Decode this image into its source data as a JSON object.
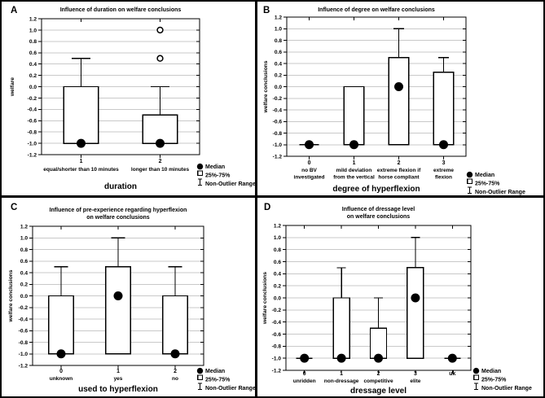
{
  "figure": {
    "background": "#ffffff",
    "border_color": "#000000",
    "gridline_color": "#c9c9c9",
    "box_fill": "#ffffff",
    "line_color": "#000000"
  },
  "legend": {
    "median": "Median",
    "box": "25%-75%",
    "whisker": "Non-Outlier Range"
  },
  "chart_data": [
    {
      "id": "A",
      "type": "box",
      "panel_label": "A",
      "title_lines": [
        "Influence of duration on welfare conclusions"
      ],
      "ylabel": "welfare",
      "xlabel": "duration",
      "ylim": [
        -1.2,
        1.2
      ],
      "ytick_step": 0.2,
      "grid": true,
      "legend_position": "bottom-right",
      "categories": [
        {
          "value": "1",
          "label_lines": [
            "equal/shorter than 10 minutes"
          ]
        },
        {
          "value": "2",
          "label_lines": [
            "longer than 10 minutes"
          ]
        }
      ],
      "boxes": [
        {
          "median": -1.0,
          "q1": -1.0,
          "q3": 0.0,
          "whisker_low": -1.0,
          "whisker_high": 0.5,
          "outliers": []
        },
        {
          "median": -1.0,
          "q1": -1.0,
          "q3": -0.5,
          "whisker_low": -1.0,
          "whisker_high": 0.0,
          "outliers": [
            0.5,
            1.0
          ]
        }
      ]
    },
    {
      "id": "B",
      "type": "box",
      "panel_label": "B",
      "title_lines": [
        "Influence of degree on welfare conclusions"
      ],
      "ylabel": "welfare conclusions",
      "xlabel": "degree of hyperflexion",
      "ylim": [
        -1.2,
        1.2
      ],
      "ytick_step": 0.2,
      "grid": true,
      "legend_position": "bottom-right",
      "categories": [
        {
          "value": "0",
          "label_lines": [
            "no BV",
            "investigated"
          ]
        },
        {
          "value": "1",
          "label_lines": [
            "mild deviation",
            "from the vertical"
          ]
        },
        {
          "value": "2",
          "label_lines": [
            "extreme flexion if",
            "horse compliant"
          ]
        },
        {
          "value": "3",
          "label_lines": [
            "extreme",
            "flexion"
          ]
        }
      ],
      "boxes": [
        {
          "median": -1.0,
          "q1": -1.0,
          "q3": -1.0,
          "whisker_low": -1.0,
          "whisker_high": -1.0,
          "outliers": []
        },
        {
          "median": -1.0,
          "q1": -1.0,
          "q3": 0.0,
          "whisker_low": -1.0,
          "whisker_high": 0.0,
          "outliers": []
        },
        {
          "median": 0.0,
          "q1": -1.0,
          "q3": 0.5,
          "whisker_low": -1.0,
          "whisker_high": 1.0,
          "outliers": []
        },
        {
          "median": -1.0,
          "q1": -1.0,
          "q3": 0.25,
          "whisker_low": -1.0,
          "whisker_high": 0.5,
          "outliers": []
        }
      ]
    },
    {
      "id": "C",
      "type": "box",
      "panel_label": "C",
      "title_lines": [
        "Influence of pre-experience regarding hyperflexion",
        "on welfare conclusions"
      ],
      "ylabel": "welfare conclusions",
      "xlabel": "used to hyperflexion",
      "ylim": [
        -1.2,
        1.2
      ],
      "ytick_step": 0.2,
      "grid": true,
      "legend_position": "bottom-right",
      "categories": [
        {
          "value": "0",
          "label_lines": [
            "unknown"
          ]
        },
        {
          "value": "1",
          "label_lines": [
            "yes"
          ]
        },
        {
          "value": "2",
          "label_lines": [
            "no"
          ]
        }
      ],
      "boxes": [
        {
          "median": -1.0,
          "q1": -1.0,
          "q3": 0.0,
          "whisker_low": -1.0,
          "whisker_high": 0.5,
          "outliers": []
        },
        {
          "median": 0.0,
          "q1": -1.0,
          "q3": 0.5,
          "whisker_low": -1.0,
          "whisker_high": 1.0,
          "outliers": []
        },
        {
          "median": -1.0,
          "q1": -1.0,
          "q3": 0.0,
          "whisker_low": -1.0,
          "whisker_high": 0.5,
          "outliers": []
        }
      ]
    },
    {
      "id": "D",
      "type": "box",
      "panel_label": "D",
      "title_lines": [
        "Influence of dressage level",
        "on welfare conclusions"
      ],
      "ylabel": "welfare conclusions",
      "xlabel": "dressage level",
      "ylim": [
        -1.2,
        1.2
      ],
      "ytick_step": 0.2,
      "grid": true,
      "legend_position": "bottom-right",
      "categories": [
        {
          "value": "0",
          "label_lines": [
            "unridden"
          ]
        },
        {
          "value": "1",
          "label_lines": [
            "non-dressage"
          ]
        },
        {
          "value": "2",
          "label_lines": [
            "competitive"
          ]
        },
        {
          "value": "3",
          "label_lines": [
            "elite"
          ]
        },
        {
          "value": "uk",
          "label_lines": []
        }
      ],
      "boxes": [
        {
          "median": -1.0,
          "q1": -1.0,
          "q3": -1.0,
          "whisker_low": -1.0,
          "whisker_high": -1.0,
          "outliers": []
        },
        {
          "median": -1.0,
          "q1": -1.0,
          "q3": 0.0,
          "whisker_low": -1.0,
          "whisker_high": 0.5,
          "outliers": []
        },
        {
          "median": -1.0,
          "q1": -1.0,
          "q3": -0.5,
          "whisker_low": -1.0,
          "whisker_high": 0.0,
          "outliers": []
        },
        {
          "median": 0.0,
          "q1": -1.0,
          "q3": 0.5,
          "whisker_low": -1.0,
          "whisker_high": 1.0,
          "outliers": []
        },
        {
          "median": -1.0,
          "q1": -1.0,
          "q3": -1.0,
          "whisker_low": -1.0,
          "whisker_high": -1.0,
          "outliers": []
        }
      ]
    }
  ]
}
